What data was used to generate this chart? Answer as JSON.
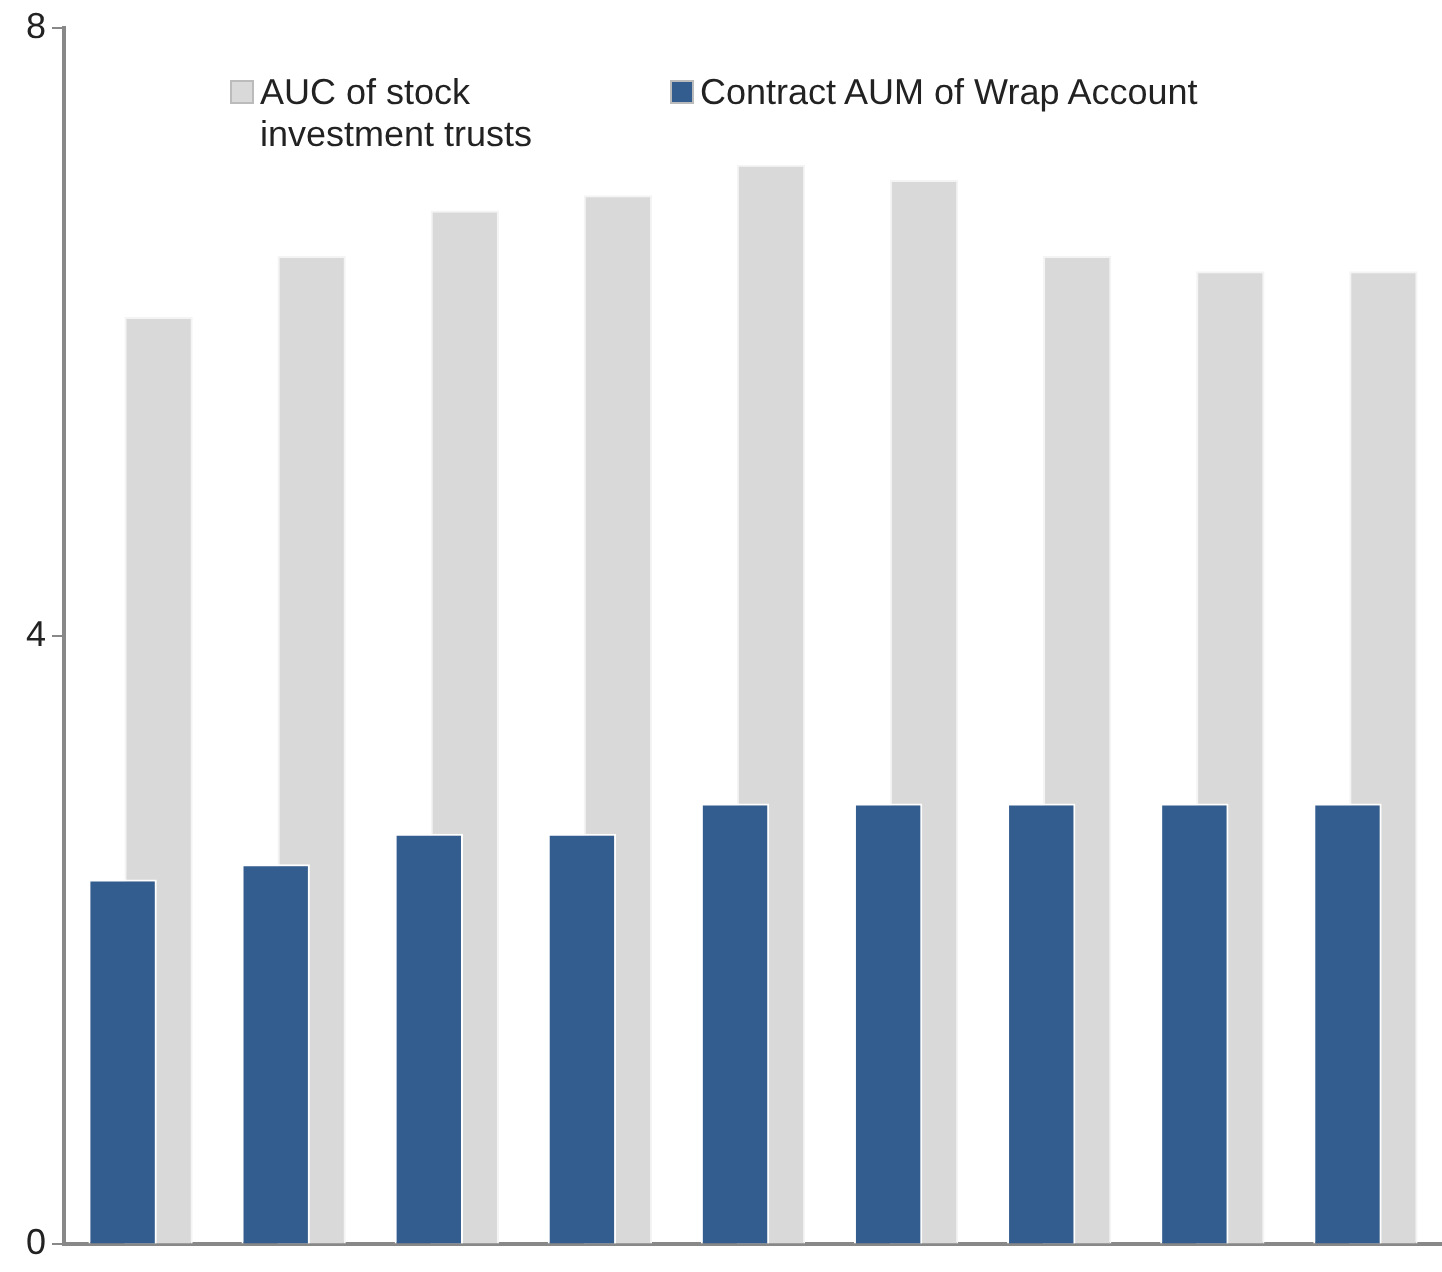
{
  "chart_data": {
    "type": "bar",
    "categories": [
      null,
      null,
      null,
      null,
      null,
      null,
      null,
      null,
      null
    ],
    "series": [
      {
        "name": "AUC of stock investment trusts",
        "color": "#d9d9d9",
        "values": [
          6.1,
          6.5,
          6.8,
          6.9,
          7.1,
          7.0,
          6.5,
          6.4,
          6.4
        ]
      },
      {
        "name": "Contract AUM of Wrap Account",
        "color": "#345d8f",
        "values": [
          2.4,
          2.5,
          2.7,
          2.7,
          2.9,
          2.9,
          2.9,
          2.9,
          2.9
        ]
      }
    ],
    "ylim": [
      0,
      8
    ],
    "yticks": [
      0,
      4,
      8
    ],
    "grid": false,
    "legend": "top"
  }
}
